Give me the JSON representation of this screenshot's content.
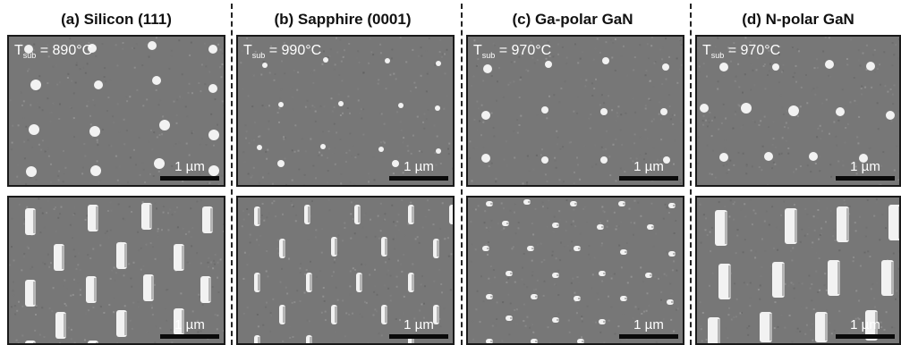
{
  "columns": [
    {
      "title": "(a) Silicon (111)",
      "temp_symbol": "T",
      "temp_subscript": "sub",
      "temp_value": " = 890°C",
      "scale_label": "1 µm"
    },
    {
      "title": "(b) Sapphire (0001)",
      "temp_symbol": "T",
      "temp_subscript": "sub",
      "temp_value": " = 990°C",
      "scale_label": "1 µm"
    },
    {
      "title": "(c) Ga-polar GaN",
      "temp_symbol": "T",
      "temp_subscript": "sub",
      "temp_value": " = 970°C",
      "scale_label": "1 µm"
    },
    {
      "title": "(d) N-polar GaN",
      "temp_symbol": "T",
      "temp_subscript": "sub",
      "temp_value": " = 970°C",
      "scale_label": "1 µm"
    }
  ],
  "bottom_scale_label": "1 µm",
  "colors": {
    "background": "#ffffff",
    "panel_border": "#1a1a1a",
    "sem_background": "#777777",
    "feature": "#f2f2f2",
    "scale_bar": "#0a0a0a",
    "overlay_text": "#ffffff"
  }
}
